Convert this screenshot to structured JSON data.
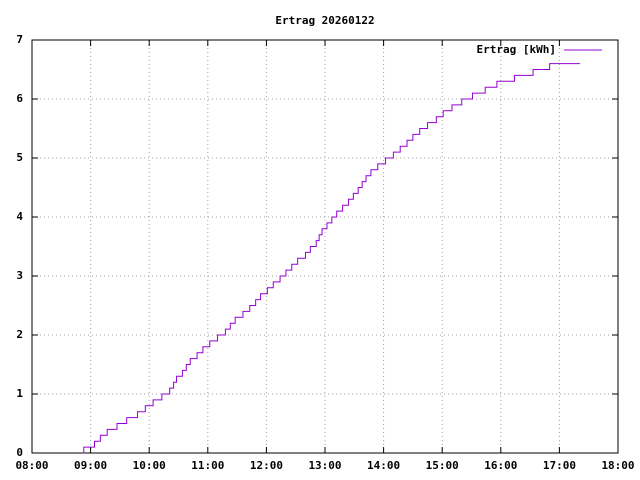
{
  "chart_data": {
    "type": "line",
    "step": true,
    "title": "Ertrag 20260122",
    "x": [
      "08:52",
      "08:53",
      "09:04",
      "09:10",
      "09:17",
      "09:27",
      "09:37",
      "09:48",
      "09:56",
      "10:04",
      "10:13",
      "10:21",
      "10:25",
      "10:28",
      "10:34",
      "10:38",
      "10:42",
      "10:49",
      "10:55",
      "11:02",
      "11:10",
      "11:18",
      "11:23",
      "11:28",
      "11:36",
      "11:43",
      "11:49",
      "11:54",
      "12:01",
      "12:07",
      "12:14",
      "12:20",
      "12:26",
      "12:32",
      "12:40",
      "12:45",
      "12:51",
      "12:54",
      "12:57",
      "13:02",
      "13:07",
      "13:12",
      "13:18",
      "13:24",
      "13:29",
      "13:34",
      "13:38",
      "13:42",
      "13:47",
      "13:54",
      "14:02",
      "14:10",
      "14:17",
      "14:24",
      "14:30",
      "14:37",
      "14:45",
      "14:54",
      "15:01",
      "15:10",
      "15:20",
      "15:31",
      "15:44",
      "15:56",
      "16:14",
      "16:33",
      "16:50",
      "17:21"
    ],
    "series": [
      {
        "name": "Ertrag [kWh]",
        "color": "#9400d3",
        "values": [
          0,
          0.1,
          0.2,
          0.3,
          0.4,
          0.5,
          0.6,
          0.7,
          0.8,
          0.9,
          1.0,
          1.1,
          1.2,
          1.3,
          1.4,
          1.5,
          1.6,
          1.7,
          1.8,
          1.9,
          2.0,
          2.1,
          2.2,
          2.3,
          2.4,
          2.5,
          2.6,
          2.7,
          2.8,
          2.9,
          3.0,
          3.1,
          3.2,
          3.3,
          3.4,
          3.5,
          3.6,
          3.7,
          3.8,
          3.9,
          4.0,
          4.1,
          4.2,
          4.3,
          4.4,
          4.5,
          4.6,
          4.7,
          4.8,
          4.9,
          5.0,
          5.1,
          5.2,
          5.3,
          5.4,
          5.5,
          5.6,
          5.7,
          5.8,
          5.9,
          6.0,
          6.1,
          6.2,
          6.3,
          6.4,
          6.5,
          6.6,
          6.6
        ]
      }
    ],
    "xlim": [
      "08:00",
      "18:00"
    ],
    "xticks": [
      "08:00",
      "09:00",
      "10:00",
      "11:00",
      "12:00",
      "13:00",
      "14:00",
      "15:00",
      "16:00",
      "17:00",
      "18:00"
    ],
    "ylim": [
      0,
      7
    ],
    "yticks": [
      0,
      1,
      2,
      3,
      4,
      5,
      6,
      7
    ],
    "grid": true,
    "legend": "top-right"
  }
}
